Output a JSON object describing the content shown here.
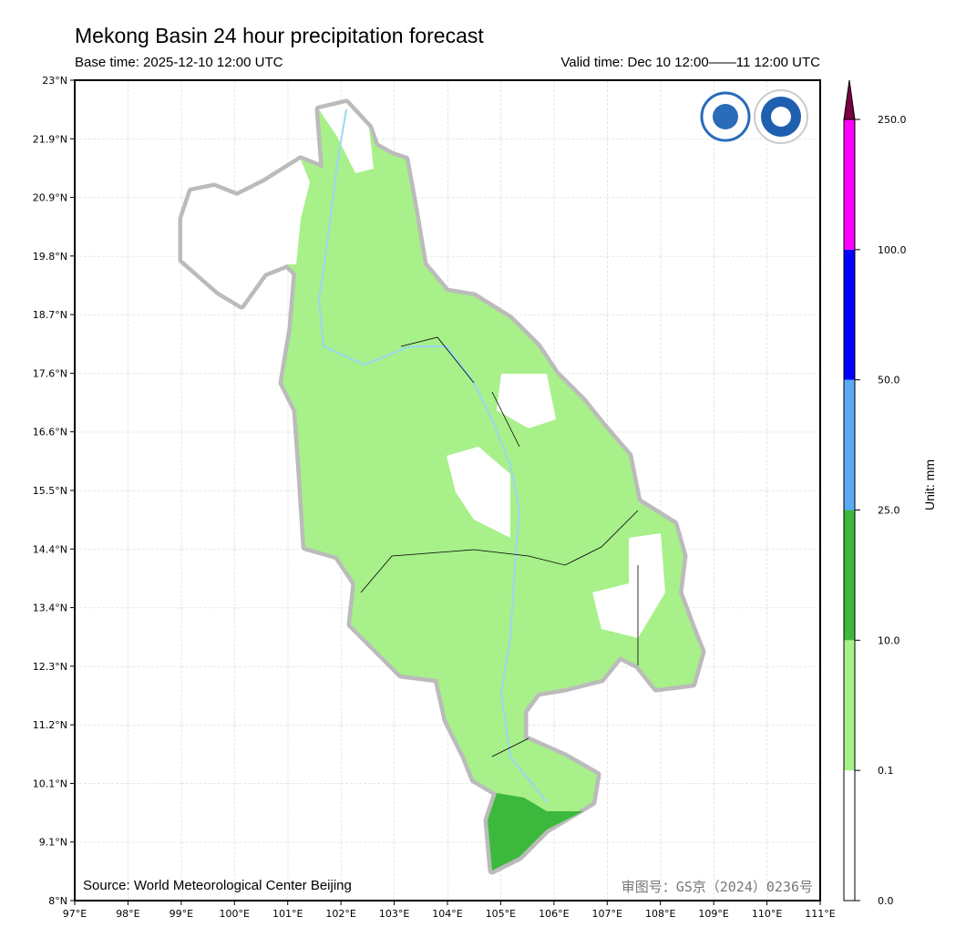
{
  "title": "Mekong Basin 24 hour precipitation forecast",
  "base_time": "Base time: 2025-12-10 12:00 UTC",
  "valid_time": "Valid time: Dec 10 12:00——11 12:00 UTC",
  "source": "Source: World Meteorological Center Beijing",
  "review_number": "审图号：GS京（2024）0236号",
  "x_ticks": [
    "97°E",
    "98°E",
    "99°E",
    "100°E",
    "101°E",
    "102°E",
    "103°E",
    "104°E",
    "105°E",
    "106°E",
    "107°E",
    "108°E",
    "109°E",
    "110°E",
    "111°E"
  ],
  "y_ticks": [
    "23°N",
    "21.9°N",
    "20.9°N",
    "19.8°N",
    "18.7°N",
    "17.6°N",
    "16.6°N",
    "15.5°N",
    "14.4°N",
    "13.4°N",
    "12.3°N",
    "11.2°N",
    "10.1°N",
    "9.1°N",
    "8°N"
  ],
  "colorbar": {
    "unit_label": "Unit: mm",
    "levels": [
      "0.0",
      "0.1",
      "10.0",
      "25.0",
      "50.0",
      "100.0",
      "250.0"
    ],
    "colors": [
      "#ffffff",
      "#a8f08a",
      "#3cb93c",
      "#5aaaf5",
      "#0000ff",
      "#ff00ff"
    ],
    "extend_color": "#7a0040"
  },
  "logos": [
    "wmo-logo",
    "cma-logo"
  ]
}
